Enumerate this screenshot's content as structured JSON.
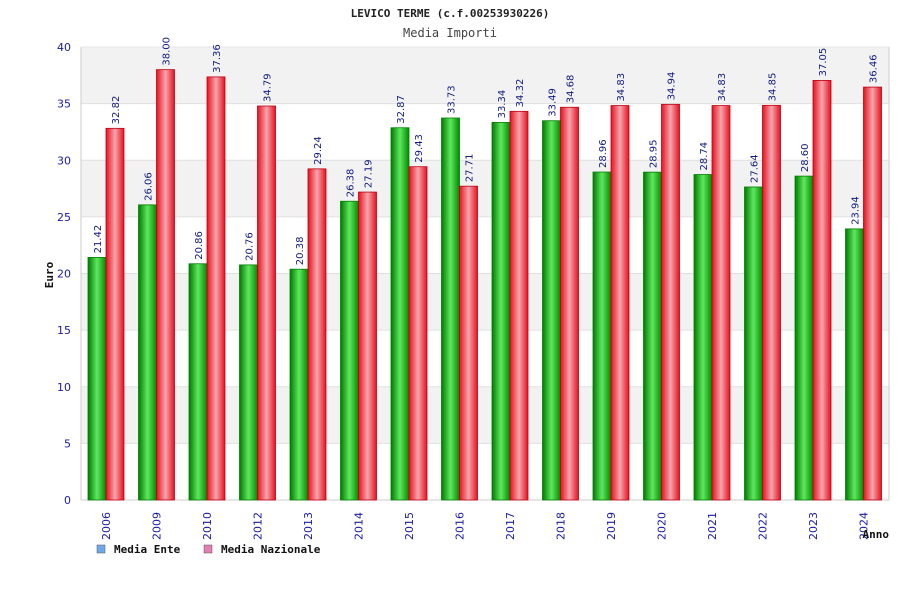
{
  "chart_data": {
    "type": "bar",
    "title": "LEVICO TERME (c.f.00253930226)",
    "subtitle": "Media Importi",
    "xlabel": "Anno",
    "ylabel": "Euro",
    "ylim": [
      0,
      40
    ],
    "yticks": [
      0,
      5,
      10,
      15,
      20,
      25,
      30,
      35,
      40
    ],
    "grid": true,
    "legend_position": "bottom-left",
    "categories": [
      "2006",
      "2009",
      "2010",
      "2012",
      "2013",
      "2014",
      "2015",
      "2016",
      "2017",
      "2018",
      "2019",
      "2020",
      "2021",
      "2022",
      "2023",
      "2024"
    ],
    "series": [
      {
        "name": "Media Ente",
        "legend_color": "#6fa8e8",
        "bar_color": "#00b000",
        "values": [
          21.42,
          26.06,
          20.86,
          20.76,
          20.38,
          26.38,
          32.87,
          33.73,
          33.34,
          33.49,
          28.96,
          28.95,
          28.74,
          27.64,
          28.6,
          23.94
        ],
        "labels": [
          "21.42",
          "26.06",
          "20.86",
          "20.76",
          "20.38",
          "26.38",
          "32.87",
          "33.73",
          "33.34",
          "33.49",
          "28.96",
          "28.95",
          "28.74",
          "27.64",
          "28.60",
          "23.94"
        ]
      },
      {
        "name": "Media Nazionale",
        "legend_color": "#e37fb0",
        "bar_color": "#e8101e",
        "values": [
          32.82,
          38.0,
          37.36,
          34.79,
          29.24,
          27.19,
          29.43,
          27.71,
          34.32,
          34.68,
          34.83,
          34.94,
          34.83,
          34.85,
          37.05,
          36.46
        ],
        "labels": [
          "32.82",
          "38.00",
          "37.36",
          "34.79",
          "29.24",
          "27.19",
          "29.43",
          "27.71",
          "34.32",
          "34.68",
          "34.83",
          "34.94",
          "34.83",
          "34.85",
          "37.05",
          "36.46"
        ]
      }
    ]
  }
}
